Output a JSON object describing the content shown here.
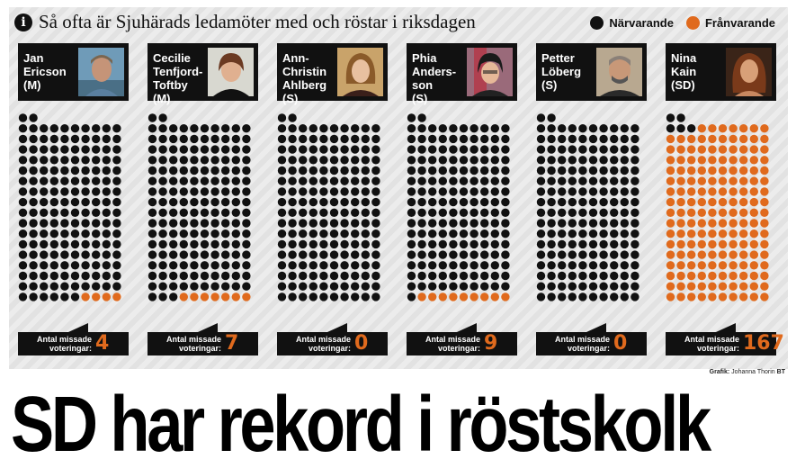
{
  "heading": {
    "info_glyph": "i",
    "text": "Så ofta är Sjuhärads ledamöter med och röstar i riksdagen"
  },
  "legend": [
    {
      "label": "Närvarande",
      "color": "#111111"
    },
    {
      "label": "Frånvarande",
      "color": "#e06a1d"
    }
  ],
  "missed_label": "Antal missade\nvoteringar:",
  "credit": {
    "label": "Grafik:",
    "name": "Johanna Thorin",
    "logo": "BT"
  },
  "headline": "SD har rekord i röstskolk",
  "colors": {
    "present": "#111111",
    "absent": "#e06a1d"
  },
  "chart_data": {
    "type": "table",
    "title": "Så ofta är Sjuhärads ledamöter med och röstar i riksdagen",
    "legend": [
      "Närvarande",
      "Frånvarande"
    ],
    "legend_placement": "top-right",
    "dots_per_member": 172,
    "dots_per_row": 10,
    "members": [
      {
        "name": "Jan\nEricson\n(M)",
        "missed": "4",
        "missed_value": 4,
        "present_value": 168
      },
      {
        "name": "Cecilie\nTenfjord-\nToftby\n(M)",
        "missed": "7",
        "missed_value": 7,
        "present_value": 165
      },
      {
        "name": "Ann-\nChristin\nAhlberg\n(S)",
        "missed": "0",
        "missed_value": 0,
        "present_value": 172
      },
      {
        "name": "Phia\nAnders-\nson\n(S)",
        "missed": "9",
        "missed_value": 9,
        "present_value": 163
      },
      {
        "name": "Petter\nLöberg\n(S)",
        "missed": "0",
        "missed_value": 0,
        "present_value": 172
      },
      {
        "name": "Nina\nKain\n(SD)",
        "missed": "167",
        "missed_value": 167,
        "present_value": 5
      }
    ]
  }
}
